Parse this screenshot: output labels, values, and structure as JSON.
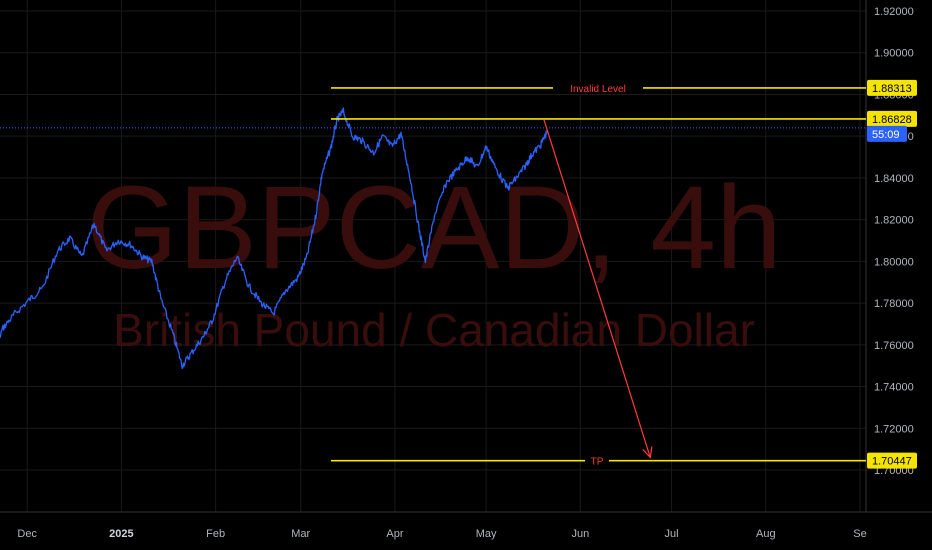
{
  "chart_data": {
    "type": "line",
    "symbol": "GBPCAD, 4h",
    "description": "British Pound / Canadian Dollar",
    "colors": {
      "price_line": "#2962ff",
      "level_line": "#f5e400",
      "annotation": "#ff3b3b",
      "current_price_badge": "#2962ff",
      "grid": "#1a1a1a"
    },
    "x_ticks": [
      "Dec",
      "2025",
      "Feb",
      "Mar",
      "Apr",
      "May",
      "Jun",
      "Jul",
      "Aug",
      "Se"
    ],
    "y_ticks": [
      "1.92000",
      "1.90000",
      "1.88000",
      "1.86000",
      "1.84000",
      "1.82000",
      "1.80000",
      "1.78000",
      "1.76000",
      "1.74000",
      "1.72000",
      "1.70000"
    ],
    "ylim": [
      1.7,
      1.92
    ],
    "series": [
      {
        "values": [
          [
            "2024-11-12",
            1.782
          ],
          [
            "2024-11-16",
            1.768
          ],
          [
            "2024-11-19",
            1.752
          ],
          [
            "2024-11-23",
            1.768
          ],
          [
            "2024-11-27",
            1.775
          ],
          [
            "2024-12-02",
            1.782
          ],
          [
            "2024-12-06",
            1.787
          ],
          [
            "2024-12-11",
            1.805
          ],
          [
            "2024-12-15",
            1.811
          ],
          [
            "2024-12-19",
            1.802
          ],
          [
            "2024-12-23",
            1.818
          ],
          [
            "2024-12-27",
            1.805
          ],
          [
            "2024-12-31",
            1.81
          ],
          [
            "2025-01-04",
            1.808
          ],
          [
            "2025-01-08",
            1.802
          ],
          [
            "2025-01-11",
            1.8
          ],
          [
            "2025-01-14",
            1.782
          ],
          [
            "2025-01-18",
            1.765
          ],
          [
            "2025-01-21",
            1.75
          ],
          [
            "2025-01-24",
            1.756
          ],
          [
            "2025-01-28",
            1.764
          ],
          [
            "2025-01-31",
            1.772
          ],
          [
            "2025-02-04",
            1.79
          ],
          [
            "2025-02-08",
            1.802
          ],
          [
            "2025-02-12",
            1.788
          ],
          [
            "2025-02-16",
            1.78
          ],
          [
            "2025-02-20",
            1.775
          ],
          [
            "2025-02-24",
            1.786
          ],
          [
            "2025-02-28",
            1.792
          ],
          [
            "2025-03-03",
            1.802
          ],
          [
            "2025-03-06",
            1.822
          ],
          [
            "2025-03-08",
            1.842
          ],
          [
            "2025-03-11",
            1.855
          ],
          [
            "2025-03-13",
            1.868
          ],
          [
            "2025-03-15",
            1.872
          ],
          [
            "2025-03-18",
            1.86
          ],
          [
            "2025-03-21",
            1.858
          ],
          [
            "2025-03-25",
            1.852
          ],
          [
            "2025-03-28",
            1.86
          ],
          [
            "2025-03-31",
            1.855
          ],
          [
            "2025-04-03",
            1.861
          ],
          [
            "2025-04-06",
            1.84
          ],
          [
            "2025-04-09",
            1.815
          ],
          [
            "2025-04-11",
            1.8
          ],
          [
            "2025-04-14",
            1.822
          ],
          [
            "2025-04-18",
            1.838
          ],
          [
            "2025-04-22",
            1.845
          ],
          [
            "2025-04-25",
            1.85
          ],
          [
            "2025-04-28",
            1.845
          ],
          [
            "2025-05-01",
            1.855
          ],
          [
            "2025-05-04",
            1.845
          ],
          [
            "2025-05-08",
            1.835
          ],
          [
            "2025-05-11",
            1.84
          ],
          [
            "2025-05-14",
            1.846
          ],
          [
            "2025-05-16",
            1.851
          ],
          [
            "2025-05-19",
            1.856
          ],
          [
            "2025-05-21",
            1.862
          ]
        ]
      }
    ],
    "levels": [
      {
        "label": "Invalid Level",
        "price": 1.88313,
        "badge": "1.88313"
      },
      {
        "label": "",
        "price": 1.86828,
        "badge": "1.86828"
      },
      {
        "label": "TP",
        "price": 1.70447,
        "badge": "1.70447"
      }
    ],
    "current_price": {
      "price": 1.864,
      "badge": "55:09"
    },
    "projection_arrow": {
      "from": [
        "2025-05-20",
        1.868
      ],
      "to": [
        "2025-06-24",
        1.706
      ]
    }
  }
}
